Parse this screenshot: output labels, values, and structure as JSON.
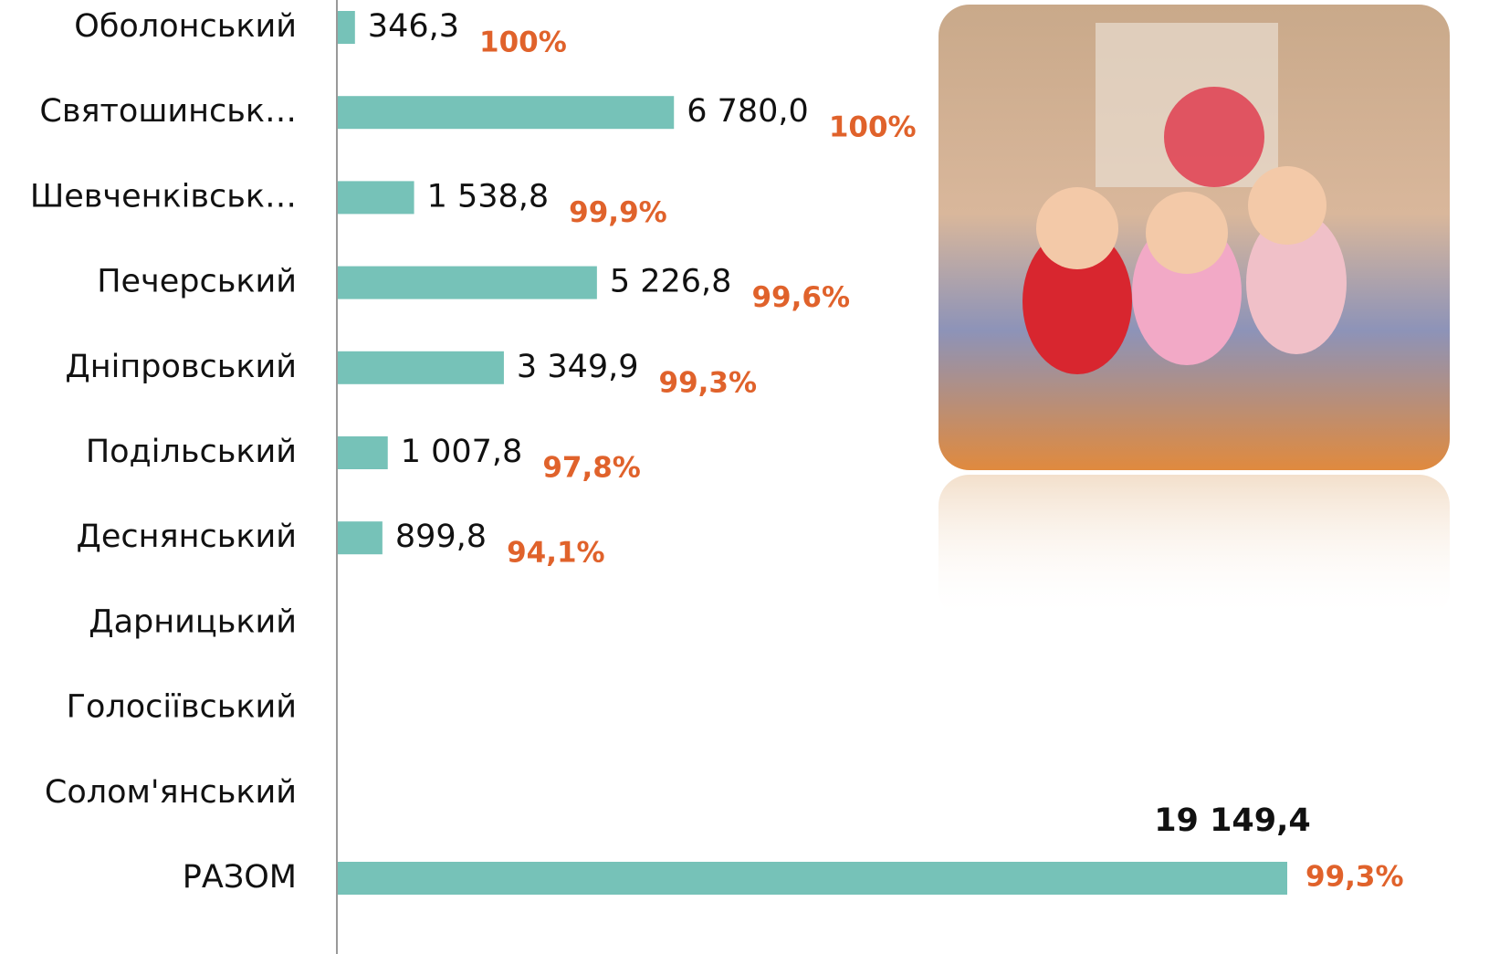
{
  "chart_data": {
    "type": "hbar",
    "categories": [
      "Оболонський",
      "Святошинськ…",
      "Шевченківськ…",
      "Печерський",
      "Дніпровський",
      "Подільський",
      "Деснянський",
      "Дарницький",
      "Голосіївський",
      "Солом'янський",
      "РАЗОМ"
    ],
    "values": [
      346.3,
      6780.0,
      1538.8,
      5226.8,
      3349.9,
      1007.8,
      899.8,
      null,
      null,
      null,
      19149.4
    ],
    "value_labels": [
      "346,3",
      "6 780,0",
      "1 538,8",
      "5 226,8",
      "3 349,9",
      "1 007,8",
      "899,8",
      null,
      null,
      null,
      "19 149,4"
    ],
    "share_labels": [
      "100%",
      "100%",
      "99,9%",
      "99,6%",
      "99,3%",
      "97,8%",
      "94,1%",
      null,
      null,
      null,
      "99,3%"
    ],
    "color": "#76c2b8"
  }
}
